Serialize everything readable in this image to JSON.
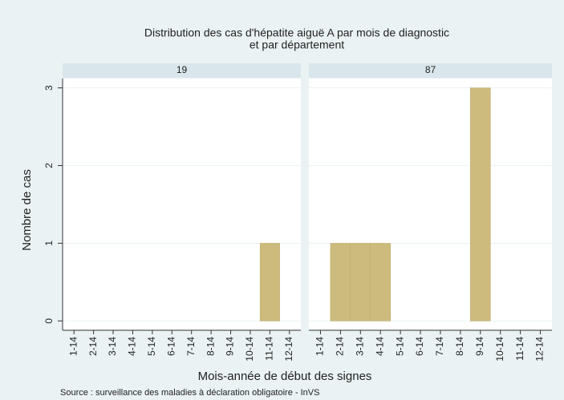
{
  "chart_data": {
    "type": "bar",
    "title": [
      "Distribution des cas d'hépatite aiguë A par mois de diagnostic",
      "et par département"
    ],
    "y_label": "Nombre de cas",
    "x_label": "Mois-année de début des signes",
    "source": "Source : surveillance des maladies à déclaration obligatoire - InVS",
    "categories": [
      "1-14",
      "2-14",
      "3-14",
      "4-14",
      "5-14",
      "6-14",
      "7-14",
      "8-14",
      "9-14",
      "10-14",
      "11-14",
      "12-14"
    ],
    "series": [
      {
        "name": "19",
        "values": [
          0,
          0,
          0,
          0,
          0,
          0,
          0,
          0,
          0,
          0,
          1,
          0
        ]
      },
      {
        "name": "87",
        "values": [
          0,
          1,
          1,
          1,
          0,
          0,
          0,
          0,
          3,
          0,
          0,
          0
        ]
      }
    ],
    "color": "#cdbb7d",
    "ylim": [
      -0.12,
      3.12
    ],
    "yticks": [
      0,
      1,
      2,
      3
    ],
    "grid": true
  }
}
